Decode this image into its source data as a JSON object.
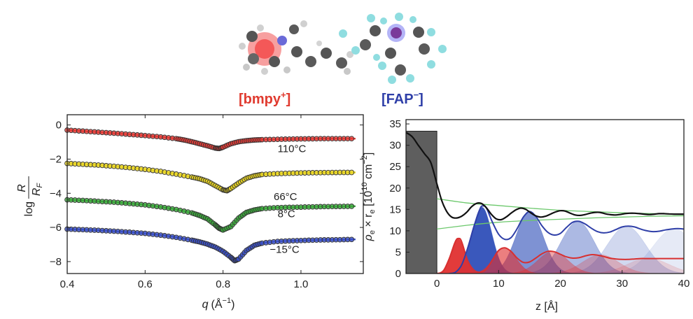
{
  "molecule_labels": {
    "cation": "[bmpy",
    "cation_sup": "+",
    "cation_close": "]",
    "anion": "[FAP",
    "anion_sup": "−",
    "anion_close": "]",
    "cation_color": "#e03a2f",
    "anion_color": "#2f3fa8"
  },
  "chart_data": [
    {
      "type": "scatter",
      "panel": "left",
      "xlabel": "q",
      "xlabel_unit": "(Å",
      "xlabel_unit_sup": "−1",
      "xlabel_close": ")",
      "ylabel_log": "log",
      "ylabel_num": "R",
      "ylabel_den": "R",
      "ylabel_den_sub": "F",
      "xlim": [
        0.4,
        1.16
      ],
      "ylim": [
        -8.7,
        0.6
      ],
      "x_ticks": [
        0.4,
        0.6,
        0.8,
        1.0
      ],
      "x_tick_labels": [
        "0.4",
        "0.6",
        "0.8",
        "1.0"
      ],
      "y_ticks": [
        0,
        -2,
        -4,
        -6,
        -8
      ],
      "y_tick_labels": [
        "0",
        "−2",
        "−4",
        "−6",
        "−8"
      ],
      "grid": false,
      "series": [
        {
          "name": "110°C",
          "color": "#e53935",
          "label_pos": [
            0.94,
            -1.6
          ],
          "x": [
            0.4,
            0.44,
            0.48,
            0.52,
            0.56,
            0.6,
            0.64,
            0.68,
            0.7,
            0.72,
            0.74,
            0.76,
            0.78,
            0.79,
            0.8,
            0.82,
            0.84,
            0.86,
            0.88,
            0.9,
            0.94,
            0.98,
            1.02,
            1.06,
            1.1,
            1.14
          ],
          "y": [
            -0.3,
            -0.36,
            -0.42,
            -0.48,
            -0.55,
            -0.62,
            -0.7,
            -0.8,
            -0.88,
            -0.98,
            -1.1,
            -1.22,
            -1.35,
            -1.38,
            -1.3,
            -1.1,
            -0.98,
            -0.92,
            -0.88,
            -0.86,
            -0.84,
            -0.82,
            -0.81,
            -0.8,
            -0.8,
            -0.8
          ]
        },
        {
          "name": "66°C",
          "color": "#e8d51e",
          "label_pos": [
            0.93,
            -4.4
          ],
          "x": [
            0.4,
            0.44,
            0.48,
            0.52,
            0.56,
            0.6,
            0.64,
            0.68,
            0.72,
            0.74,
            0.76,
            0.78,
            0.8,
            0.81,
            0.82,
            0.84,
            0.86,
            0.88,
            0.9,
            0.94,
            0.98,
            1.02,
            1.06,
            1.1,
            1.14
          ],
          "y": [
            -2.25,
            -2.3,
            -2.35,
            -2.42,
            -2.5,
            -2.6,
            -2.72,
            -2.88,
            -3.05,
            -3.15,
            -3.3,
            -3.55,
            -3.8,
            -3.85,
            -3.72,
            -3.4,
            -3.12,
            -2.98,
            -2.9,
            -2.85,
            -2.82,
            -2.8,
            -2.79,
            -2.78,
            -2.78
          ]
        },
        {
          "name": "8°C",
          "color": "#3aa83a",
          "label_pos": [
            0.94,
            -5.4
          ],
          "x": [
            0.4,
            0.44,
            0.48,
            0.52,
            0.56,
            0.6,
            0.64,
            0.68,
            0.72,
            0.74,
            0.76,
            0.78,
            0.79,
            0.8,
            0.82,
            0.84,
            0.86,
            0.88,
            0.9,
            0.94,
            0.98,
            1.02,
            1.06,
            1.1,
            1.14
          ],
          "y": [
            -4.38,
            -4.42,
            -4.47,
            -4.52,
            -4.6,
            -4.68,
            -4.8,
            -4.95,
            -5.15,
            -5.3,
            -5.5,
            -5.85,
            -6.05,
            -6.15,
            -5.95,
            -5.45,
            -5.12,
            -4.98,
            -4.9,
            -4.84,
            -4.82,
            -4.8,
            -4.78,
            -4.77,
            -4.76
          ]
        },
        {
          "name": "−15°C",
          "color": "#3a4fc8",
          "label_pos": [
            0.92,
            -7.5
          ],
          "x": [
            0.4,
            0.44,
            0.48,
            0.52,
            0.56,
            0.6,
            0.64,
            0.68,
            0.72,
            0.74,
            0.76,
            0.78,
            0.8,
            0.82,
            0.83,
            0.84,
            0.86,
            0.88,
            0.9,
            0.94,
            0.98,
            1.02,
            1.06,
            1.1,
            1.14
          ],
          "y": [
            -6.1,
            -6.13,
            -6.17,
            -6.22,
            -6.28,
            -6.35,
            -6.45,
            -6.58,
            -6.75,
            -6.85,
            -6.98,
            -7.15,
            -7.4,
            -7.75,
            -7.95,
            -7.85,
            -7.35,
            -7.05,
            -6.92,
            -6.82,
            -6.78,
            -6.75,
            -6.73,
            -6.72,
            -6.7
          ]
        }
      ]
    },
    {
      "type": "line",
      "panel": "right",
      "xlabel": "z [Å]",
      "ylabel_rho": "ρ",
      "ylabel_rho_sub": "e",
      "ylabel_mid": " × r",
      "ylabel_r_sub": "e",
      "ylabel_unit": " [10",
      "ylabel_unit_sup1": "10",
      "ylabel_unit2": " cm",
      "ylabel_unit_sup2": "−2",
      "ylabel_close": "]",
      "xlim": [
        -5,
        40
      ],
      "ylim": [
        0,
        36
      ],
      "x_ticks": [
        0,
        10,
        20,
        30,
        40
      ],
      "x_tick_labels": [
        "0",
        "10",
        "20",
        "30",
        "40"
      ],
      "y_ticks": [
        0,
        5,
        10,
        15,
        20,
        25,
        30,
        35
      ],
      "y_tick_labels": [
        "0",
        "5",
        "10",
        "15",
        "20",
        "25",
        "30",
        "35"
      ],
      "grid": false,
      "substrate": {
        "x": [
          -5,
          0
        ],
        "height": 33.3,
        "color": "#5e5e5e"
      },
      "total_density": {
        "color": "#111111",
        "x": [
          -5,
          -4,
          -3,
          -2,
          -1,
          0,
          0.8,
          1.6,
          2.4,
          3.2,
          4,
          4.8,
          5.6,
          6.4,
          7.2,
          8,
          8.8,
          9.6,
          10.4,
          11.2,
          12,
          12.8,
          13.6,
          14.4,
          15.2,
          16,
          16.8,
          17.6,
          18.4,
          19.2,
          20,
          20.8,
          21.6,
          22.4,
          23.2,
          24,
          24.8,
          25.6,
          26.4,
          27.2,
          28,
          28.8,
          29.6,
          30.4,
          31.2,
          32,
          32.8,
          33.6,
          34.4,
          35.2,
          36,
          36.8,
          37.6,
          38.4,
          39.2,
          40
        ],
        "y": [
          33,
          32,
          30,
          28,
          26,
          21,
          17,
          14.5,
          13.2,
          13.0,
          13.4,
          14.3,
          15.6,
          16.4,
          16.4,
          15.4,
          13.9,
          12.8,
          12.6,
          13.2,
          14.1,
          14.9,
          15.3,
          15.0,
          14.2,
          13.5,
          13.2,
          13.4,
          13.9,
          14.4,
          14.7,
          14.6,
          14.1,
          13.7,
          13.6,
          13.8,
          14.1,
          14.3,
          14.3,
          14.0,
          13.8,
          13.7,
          13.8,
          14.0,
          14.1,
          14.1,
          14.0,
          13.9,
          13.8,
          13.9,
          14.0,
          14.0,
          13.95,
          13.9,
          13.9,
          13.9
        ]
      },
      "envelope_upper": {
        "color": "#6cc86c",
        "x": [
          0,
          5,
          10,
          15,
          20,
          25,
          30,
          35,
          40
        ],
        "y": [
          17.5,
          16.5,
          15.9,
          15.3,
          14.8,
          14.5,
          14.2,
          14.0,
          13.8
        ]
      },
      "envelope_lower": {
        "color": "#6cc86c",
        "x": [
          0,
          5,
          10,
          15,
          20,
          25,
          30,
          35,
          40
        ],
        "y": [
          10.4,
          11.3,
          12.0,
          12.4,
          12.7,
          13.0,
          13.2,
          13.4,
          13.5
        ]
      },
      "anion_line": {
        "color": "#2f3fa8",
        "x": [
          2,
          3,
          4,
          5,
          6,
          7,
          7.5,
          8,
          9,
          10,
          11,
          12,
          13,
          14,
          15,
          16,
          17,
          18,
          19,
          20,
          21,
          22,
          23,
          24,
          25,
          26,
          27,
          28,
          29,
          30,
          31,
          32,
          33,
          34,
          35,
          36,
          37,
          38,
          39,
          40
        ],
        "y": [
          0,
          0.3,
          2,
          6,
          11,
          15.2,
          15.8,
          15.4,
          12,
          9.2,
          8.0,
          8.4,
          10.5,
          13.2,
          14.5,
          13.4,
          11.2,
          9.6,
          9.0,
          9.4,
          10.8,
          12.0,
          12.2,
          11.6,
          10.6,
          9.8,
          9.5,
          9.7,
          10.3,
          10.9,
          11.1,
          10.9,
          10.4,
          10.0,
          9.8,
          9.9,
          10.2,
          10.4,
          10.5,
          10.4
        ]
      },
      "cation_line": {
        "color": "#d83030",
        "x": [
          0,
          1,
          2,
          3,
          3.5,
          4,
          5,
          6,
          7,
          8,
          9,
          10,
          11,
          12,
          13,
          14,
          15,
          16,
          17,
          18,
          19,
          20,
          21,
          22,
          23,
          24,
          25,
          26,
          27,
          28,
          29,
          30,
          31,
          32,
          33,
          34,
          35,
          36,
          37,
          38,
          39,
          40
        ],
        "y": [
          0,
          0.5,
          3.5,
          7.5,
          8.2,
          7.5,
          3,
          0.8,
          0.3,
          1.0,
          3.2,
          5.4,
          6.0,
          5.2,
          3.6,
          2.6,
          2.7,
          3.6,
          4.6,
          5.2,
          5.1,
          4.5,
          3.9,
          3.6,
          3.7,
          4.1,
          4.4,
          4.3,
          4.0,
          3.6,
          3.4,
          3.3,
          3.3,
          3.4,
          3.5,
          3.5,
          3.5,
          3.5,
          3.5,
          3.5,
          3.5,
          3.5
        ]
      },
      "anion_peaks": [
        {
          "center": 7.3,
          "sigma": 1.6,
          "height": 15.5,
          "opacity": 0.95
        },
        {
          "center": 15.0,
          "sigma": 2.2,
          "height": 14.5,
          "opacity": 0.62
        },
        {
          "center": 22.8,
          "sigma": 2.7,
          "height": 12.2,
          "opacity": 0.4
        },
        {
          "center": 30.7,
          "sigma": 3.1,
          "height": 11.1,
          "opacity": 0.22
        },
        {
          "center": 38.4,
          "sigma": 3.4,
          "height": 10.5,
          "opacity": 0.12
        }
      ],
      "cation_peaks": [
        {
          "center": 3.4,
          "sigma": 1.1,
          "height": 8.2,
          "opacity": 0.95
        },
        {
          "center": 11.0,
          "sigma": 1.8,
          "height": 6.0,
          "opacity": 0.62
        },
        {
          "center": 18.8,
          "sigma": 2.4,
          "height": 5.2,
          "opacity": 0.42
        },
        {
          "center": 26.5,
          "sigma": 2.9,
          "height": 4.4,
          "opacity": 0.26
        },
        {
          "center": 34.2,
          "sigma": 3.3,
          "height": 3.6,
          "opacity": 0.15
        }
      ]
    }
  ]
}
